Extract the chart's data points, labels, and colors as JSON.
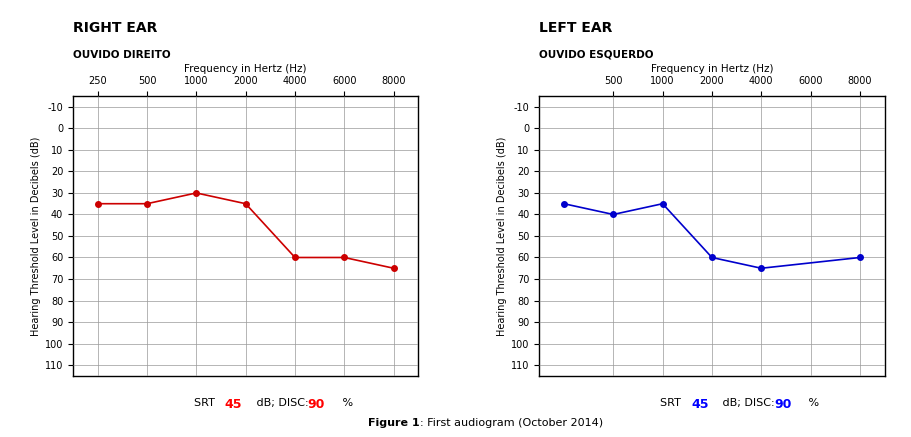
{
  "right_ear": {
    "title": "RIGHT EAR",
    "subtitle": "OUVIDO DIREITO",
    "freq_label": "Frequency in Hertz (Hz)",
    "freq_ticks": [
      250,
      500,
      1000,
      2000,
      4000,
      6000,
      8000
    ],
    "freq_tick_labels": [
      "250",
      "500",
      "1000",
      "2000",
      "4000",
      "6000",
      "8000"
    ],
    "x_positions": [
      1,
      2,
      3,
      4,
      5,
      6,
      7
    ],
    "data_x": [
      1,
      2,
      3,
      4,
      5,
      6,
      7
    ],
    "data_y": [
      35,
      35,
      30,
      35,
      60,
      60,
      65
    ],
    "color": "#cc0000",
    "srt_value": "45",
    "disc_value": "90",
    "srt_label": "SRT",
    "dB_label": "dB; DISC:",
    "pct_label": "%"
  },
  "left_ear": {
    "title": "LEFT EAR",
    "subtitle": "OUVIDO ESQUERDO",
    "freq_label": "Frequency in Hertz (Hz)",
    "freq_ticks": [
      500,
      1000,
      2000,
      4000,
      6000,
      8000
    ],
    "freq_tick_labels": [
      "500",
      "1000",
      "2000",
      "4000",
      "6000",
      "8000"
    ],
    "x_positions": [
      2,
      3,
      4,
      5,
      6,
      7
    ],
    "data_x": [
      1,
      2,
      3,
      4,
      5,
      7
    ],
    "data_y": [
      35,
      40,
      35,
      60,
      65,
      60
    ],
    "color": "#0000cc",
    "srt_value": "45",
    "disc_value": "90",
    "srt_label": "SRT",
    "dB_label": "dB; DISC:",
    "pct_label": "%"
  },
  "ylabel": "Hearing Threshold Level in Decibels (dB)",
  "ylim": [
    -15,
    115
  ],
  "yticks": [
    -10,
    0,
    10,
    20,
    30,
    40,
    50,
    60,
    70,
    80,
    90,
    100,
    110
  ],
  "figure_caption_bold": "Figure 1",
  "figure_caption_normal": ": First audiogram (October 2014)",
  "bg_color": "#ffffff",
  "grid_color": "#999999",
  "axis_color": "#000000"
}
